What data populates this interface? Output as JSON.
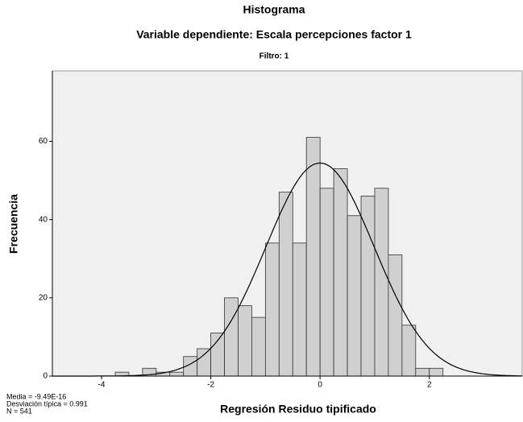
{
  "chart_data": {
    "type": "histogram",
    "title": "Histograma",
    "subtitle": "Variable dependiente: Escala percepciones factor 1",
    "filter_label": "Filtro: 1",
    "x_label": "Regresión Residuo tipificado",
    "y_label": "Frecuencia",
    "bins": [
      -3.75,
      -3.5,
      -3.25,
      -3.0,
      -2.75,
      -2.5,
      -2.25,
      -2.0,
      -1.75,
      -1.5,
      -1.25,
      -1.0,
      -0.75,
      -0.5,
      -0.25,
      0,
      0.25,
      0.5,
      0.75,
      1.0,
      1.25,
      1.5,
      1.75,
      2.0,
      2.25
    ],
    "values": [
      1,
      0,
      2,
      1,
      1,
      5,
      7,
      11,
      20,
      18,
      15,
      34,
      47,
      34,
      61,
      48,
      53,
      41,
      46,
      48,
      31,
      13,
      2,
      2
    ],
    "color": "#d0d0d0",
    "xlim": [
      -4.9,
      3.7
    ],
    "xticks": [
      -4,
      -2,
      0,
      2
    ],
    "ylim": [
      0,
      78
    ],
    "yticks": [
      0,
      20,
      40,
      60
    ],
    "stats": {
      "mean": {
        "value": -9.49e-16,
        "label": "Media = -9.49E-16"
      },
      "sd": {
        "value": 0.991,
        "label": "Desviación típica = 0.991"
      },
      "n": {
        "value": 541,
        "label": "N = 541"
      }
    }
  }
}
